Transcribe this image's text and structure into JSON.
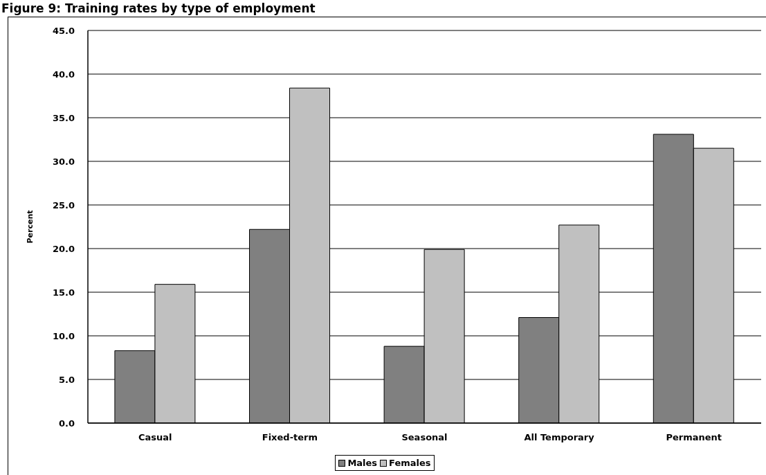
{
  "chart_data": {
    "type": "bar",
    "title": "Figure 9: Training rates by type of employment",
    "ylabel": "Percent",
    "categories": [
      "Casual",
      "Fixed-term",
      "Seasonal",
      "All Temporary",
      "Permanent"
    ],
    "series": [
      {
        "name": "Males",
        "color": "#808080",
        "values": [
          8.3,
          22.2,
          8.8,
          12.1,
          33.1
        ]
      },
      {
        "name": "Females",
        "color": "#c0c0c0",
        "values": [
          15.9,
          38.4,
          19.9,
          22.7,
          31.5
        ]
      }
    ],
    "ylim": [
      0,
      45
    ],
    "yticks": [
      {
        "value": 0,
        "label": "0.0"
      },
      {
        "value": 5,
        "label": "5.0"
      },
      {
        "value": 10,
        "label": "10.0"
      },
      {
        "value": 15,
        "label": "15.0"
      },
      {
        "value": 20,
        "label": "20.0"
      },
      {
        "value": 25,
        "label": "25.0"
      },
      {
        "value": 30,
        "label": "30.0"
      },
      {
        "value": 35,
        "label": "35.0"
      },
      {
        "value": 40,
        "label": "40.0"
      },
      {
        "value": 45,
        "label": "45.0"
      }
    ],
    "grid": "y",
    "legend": "bottom"
  }
}
